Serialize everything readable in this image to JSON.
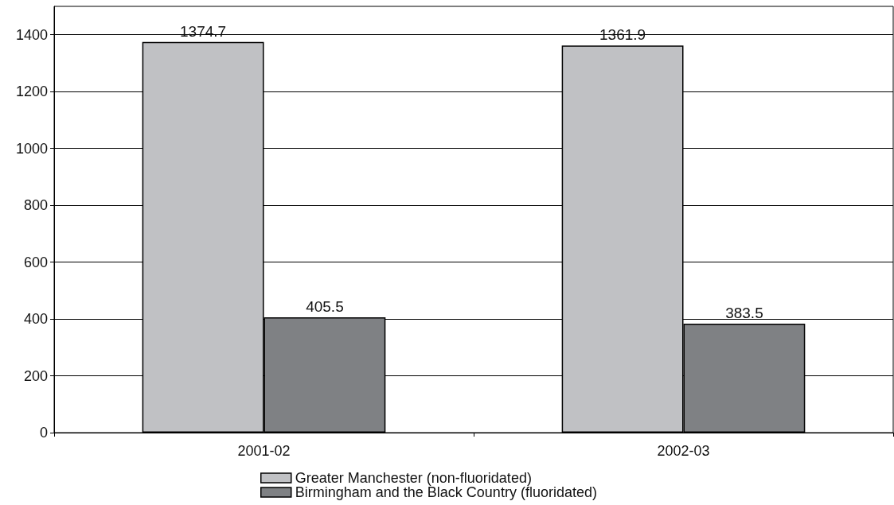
{
  "chart_data": {
    "type": "bar",
    "categories": [
      "2001-02",
      "2002-03"
    ],
    "series": [
      {
        "name": "Greater Manchester (non-fluoridated)",
        "color": "#c0c1c4",
        "values": [
          1374.7,
          1361.9
        ]
      },
      {
        "name": "Birmingham and the Black Country (fluoridated)",
        "color": "#7f8184",
        "values": [
          405.5,
          383.5
        ]
      }
    ],
    "ylim": [
      0,
      1500
    ],
    "yticks": [
      0,
      200,
      400,
      600,
      800,
      1000,
      1200,
      1400
    ],
    "grid": "y",
    "legend": "bottom",
    "data_labels": true
  }
}
